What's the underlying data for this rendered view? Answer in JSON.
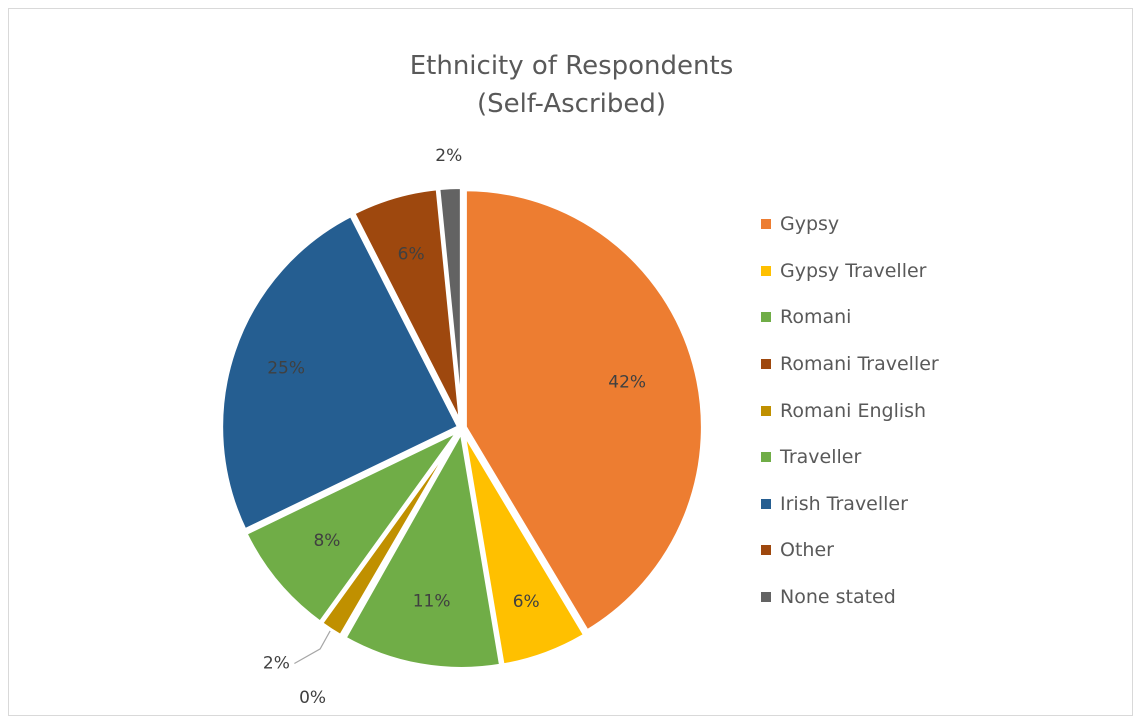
{
  "chart_data": {
    "type": "pie",
    "title_line1": "Ethnicity of Respondents",
    "title_line2": "(Self-Ascribed)",
    "slices": [
      {
        "label": "Gypsy",
        "value": 42,
        "display": "42%",
        "color": "#ED7D31"
      },
      {
        "label": "Gypsy Traveller",
        "value": 6,
        "display": "6%",
        "color": "#FFC000"
      },
      {
        "label": "Romani",
        "value": 11,
        "display": "11%",
        "color": "#70AD47"
      },
      {
        "label": "Romani Traveller",
        "value": 0.2,
        "display": "0%",
        "color": "#9E480E"
      },
      {
        "label": "Romani English",
        "value": 1.6,
        "display": "2%",
        "color": "#C09000"
      },
      {
        "label": "Traveller",
        "value": 8,
        "display": "8%",
        "color": "#70AD47"
      },
      {
        "label": "Irish Traveller",
        "value": 25,
        "display": "25%",
        "color": "#255E91"
      },
      {
        "label": "Other",
        "value": 6,
        "display": "6%",
        "color": "#9E480E"
      },
      {
        "label": "None stated",
        "value": 1.6,
        "display": "2%",
        "color": "#636363"
      }
    ],
    "legend_position": "right"
  }
}
